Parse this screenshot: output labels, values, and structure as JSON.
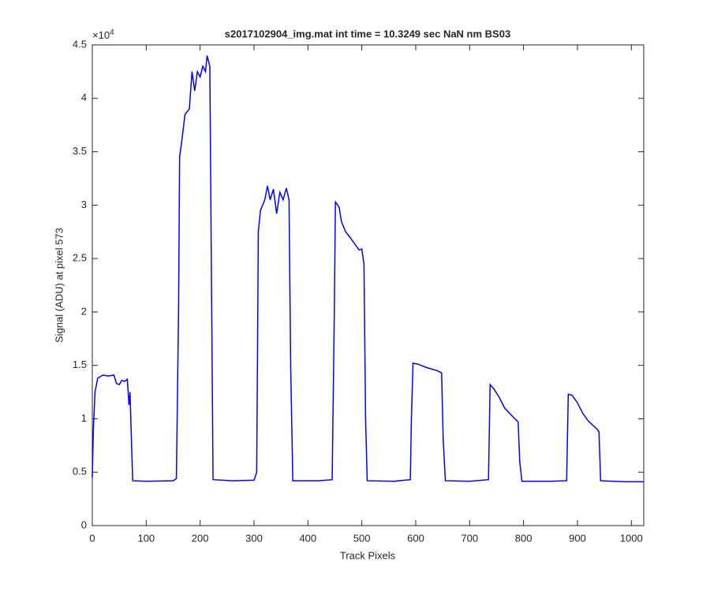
{
  "chart_data": {
    "type": "line",
    "title": "s2017102904_img.mat int time = 10.3249 sec  NaN nm BS03",
    "x_label": "Track Pixels",
    "y_label": "Signal (ADU) at pixel 573",
    "y_multiplier": {
      "base": "×10",
      "exponent": "4"
    },
    "xlim": [
      0,
      1023
    ],
    "ylim": [
      0,
      45000
    ],
    "xticks": [
      0,
      100,
      200,
      300,
      400,
      500,
      600,
      700,
      800,
      900,
      1000
    ],
    "yticks": [
      {
        "value": 0,
        "label": "0"
      },
      {
        "value": 5000,
        "label": "0.5"
      },
      {
        "value": 10000,
        "label": "1"
      },
      {
        "value": 15000,
        "label": "1.5"
      },
      {
        "value": 20000,
        "label": "2"
      },
      {
        "value": 25000,
        "label": "2.5"
      },
      {
        "value": 30000,
        "label": "3"
      },
      {
        "value": 35000,
        "label": "3.5"
      },
      {
        "value": 40000,
        "label": "4"
      },
      {
        "value": 45000,
        "label": "4.5"
      }
    ],
    "grid": false,
    "x": [
      0,
      2,
      5,
      10,
      20,
      30,
      40,
      45,
      50,
      55,
      60,
      65,
      68,
      70,
      72,
      75,
      100,
      150,
      156,
      160,
      162,
      166,
      172,
      180,
      185,
      190,
      195,
      200,
      205,
      210,
      213,
      218,
      220,
      224,
      260,
      300,
      305,
      308,
      312,
      320,
      325,
      330,
      336,
      342,
      348,
      354,
      360,
      365,
      368,
      372,
      420,
      445,
      449,
      451,
      458,
      462,
      470,
      478,
      485,
      495,
      500,
      504,
      507,
      510,
      560,
      590,
      592,
      595,
      605,
      620,
      640,
      648,
      651,
      655,
      700,
      735,
      738,
      745,
      755,
      765,
      780,
      790,
      793,
      797,
      850,
      880,
      883,
      890,
      900,
      910,
      920,
      935,
      940,
      943,
      990,
      1023
    ],
    "series": [
      {
        "color": "#0000ff",
        "values": [
          4500,
          9000,
          12500,
          13800,
          14100,
          14000,
          14100,
          13300,
          13200,
          13600,
          13500,
          13700,
          11300,
          12500,
          9000,
          4200,
          4150,
          4200,
          4400,
          20000,
          34500,
          36000,
          38500,
          39000,
          42500,
          40700,
          42500,
          42000,
          43000,
          42500,
          44000,
          43000,
          30000,
          4300,
          4200,
          4250,
          5000,
          27500,
          29500,
          30500,
          31800,
          30500,
          31500,
          29200,
          31200,
          30500,
          31600,
          30500,
          15000,
          4200,
          4200,
          4300,
          20000,
          30300,
          29800,
          28500,
          27500,
          27000,
          26500,
          25800,
          25900,
          24500,
          10000,
          4200,
          4150,
          4300,
          10000,
          15200,
          15100,
          14800,
          14500,
          14300,
          8000,
          4200,
          4150,
          4300,
          13200,
          12800,
          12000,
          11000,
          10200,
          9700,
          6000,
          4150,
          4150,
          4200,
          12300,
          12200,
          11500,
          10500,
          9800,
          9100,
          8800,
          4200,
          4100,
          4100
        ]
      }
    ]
  }
}
